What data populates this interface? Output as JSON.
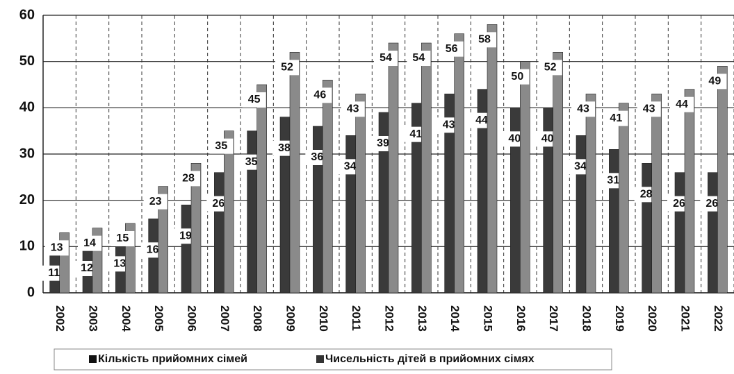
{
  "chart_data": {
    "type": "bar",
    "categories": [
      "2002",
      "2003",
      "2004",
      "2005",
      "2006",
      "2007",
      "2008",
      "2009",
      "2010",
      "2011",
      "2012",
      "2013",
      "2014",
      "2015",
      "2016",
      "2017",
      "2018",
      "2019",
      "2020",
      "2021",
      "2022"
    ],
    "series": [
      {
        "name": "Кількість прийомних сімей",
        "color": "#3a3a3a",
        "values": [
          11,
          12,
          13,
          16,
          19,
          26,
          35,
          38,
          36,
          34,
          39,
          41,
          43,
          44,
          40,
          40,
          34,
          31,
          28,
          26,
          26
        ]
      },
      {
        "name": "Чисельність дітей в прийомних сімях",
        "color": "#8a8a8a",
        "values": [
          13,
          14,
          15,
          23,
          28,
          35,
          45,
          52,
          46,
          43,
          54,
          54,
          56,
          58,
          50,
          52,
          43,
          41,
          43,
          44,
          49
        ]
      }
    ],
    "ylim": [
      0,
      60
    ],
    "yticks": [
      0,
      10,
      20,
      30,
      40,
      50,
      60
    ],
    "grid": true
  }
}
